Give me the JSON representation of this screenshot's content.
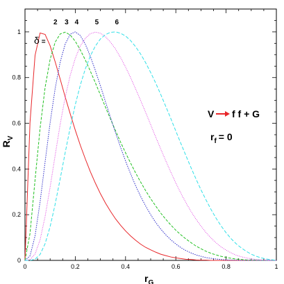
{
  "chart_data": {
    "type": "line",
    "xlabel": "r",
    "xlabel_sub": "G",
    "ylabel": "R",
    "ylabel_sub": "V",
    "xlim": [
      0,
      1
    ],
    "ylim": [
      0,
      1.1
    ],
    "xticks": [
      0,
      0.2,
      0.4,
      0.6,
      0.8,
      1
    ],
    "xtick_labels": [
      "0",
      "0.2",
      "0.4",
      "0.6",
      "0.8",
      "1"
    ],
    "yticks": [
      0,
      0.2,
      0.4,
      0.6,
      0.8,
      1
    ],
    "ytick_labels": [
      "0",
      "0.2",
      "0.4",
      "0.6",
      "0.8",
      "1"
    ],
    "grid": false,
    "delta_symbol": "δ",
    "delta_eq": "=",
    "x": [
      0,
      0.02,
      0.04,
      0.06,
      0.08,
      0.1,
      0.12,
      0.14,
      0.16,
      0.18,
      0.2,
      0.22,
      0.24,
      0.26,
      0.28,
      0.3,
      0.32,
      0.34,
      0.36,
      0.38,
      0.4,
      0.42,
      0.44,
      0.46,
      0.48,
      0.5,
      0.52,
      0.54,
      0.56,
      0.58,
      0.6,
      0.62,
      0.64,
      0.66,
      0.68,
      0.7,
      0.72,
      0.74,
      0.76,
      0.78,
      0.8,
      0.82,
      0.84,
      0.86,
      0.88,
      0.9,
      0.92,
      0.94,
      0.96,
      0.98,
      1
    ],
    "series": [
      {
        "name": "2",
        "color": "#e8262a",
        "dash": "",
        "values": [
          0,
          0.605,
          0.897,
          0.995,
          0.989,
          0.939,
          0.869,
          0.793,
          0.715,
          0.641,
          0.57,
          0.504,
          0.444,
          0.388,
          0.338,
          0.292,
          0.251,
          0.215,
          0.182,
          0.154,
          0.129,
          0.107,
          0.088,
          0.071,
          0.057,
          0.046,
          0.036,
          0.027,
          0.021,
          0.015,
          0.011,
          0.008,
          0.005,
          0.004,
          0.002,
          0.001,
          0.001,
          0,
          0,
          0,
          0,
          0,
          0,
          0,
          0,
          0,
          0,
          0,
          0,
          0,
          0
        ]
      },
      {
        "name": "3",
        "color": "#22c022",
        "dash": "4,2",
        "values": [
          0,
          0.118,
          0.352,
          0.578,
          0.757,
          0.88,
          0.955,
          0.991,
          0.999,
          0.986,
          0.959,
          0.921,
          0.877,
          0.828,
          0.777,
          0.724,
          0.671,
          0.619,
          0.568,
          0.518,
          0.471,
          0.426,
          0.383,
          0.343,
          0.305,
          0.27,
          0.238,
          0.207,
          0.18,
          0.155,
          0.132,
          0.112,
          0.094,
          0.078,
          0.063,
          0.051,
          0.04,
          0.031,
          0.024,
          0.018,
          0.013,
          0.009,
          0.006,
          0.004,
          0.002,
          0.001,
          0.001,
          0,
          0,
          0,
          0
        ]
      },
      {
        "name": "4",
        "color": "#2c2cc8",
        "dash": "1.5,1.5",
        "values": [
          0,
          0.02,
          0.107,
          0.256,
          0.431,
          0.603,
          0.752,
          0.868,
          0.947,
          0.99,
          1,
          0.984,
          0.946,
          0.893,
          0.831,
          0.764,
          0.695,
          0.626,
          0.559,
          0.495,
          0.435,
          0.379,
          0.327,
          0.28,
          0.238,
          0.2,
          0.166,
          0.137,
          0.112,
          0.09,
          0.072,
          0.056,
          0.043,
          0.033,
          0.024,
          0.018,
          0.012,
          0.009,
          0.006,
          0.004,
          0.002,
          0.001,
          0.001,
          0,
          0,
          0,
          0,
          0,
          0,
          0,
          0
        ]
      },
      {
        "name": "5",
        "color": "#e040e0",
        "dash": "1,1.5",
        "values": [
          0,
          0.003,
          0.028,
          0.09,
          0.192,
          0.321,
          0.46,
          0.596,
          0.715,
          0.81,
          0.884,
          0.938,
          0.972,
          0.992,
          0.999,
          0.994,
          0.979,
          0.955,
          0.925,
          0.888,
          0.846,
          0.8,
          0.751,
          0.7,
          0.647,
          0.594,
          0.54,
          0.487,
          0.436,
          0.386,
          0.339,
          0.294,
          0.253,
          0.215,
          0.181,
          0.15,
          0.122,
          0.098,
          0.077,
          0.059,
          0.045,
          0.033,
          0.023,
          0.016,
          0.011,
          0.007,
          0.004,
          0.002,
          0.001,
          0,
          0
        ]
      },
      {
        "name": "6",
        "color": "#30e0e8",
        "dash": "5,2.5",
        "values": [
          0,
          0,
          0.005,
          0.026,
          0.073,
          0.148,
          0.246,
          0.357,
          0.472,
          0.582,
          0.681,
          0.767,
          0.838,
          0.895,
          0.938,
          0.969,
          0.988,
          0.998,
          1,
          0.994,
          0.982,
          0.962,
          0.935,
          0.903,
          0.865,
          0.822,
          0.776,
          0.726,
          0.674,
          0.621,
          0.566,
          0.512,
          0.459,
          0.407,
          0.357,
          0.309,
          0.265,
          0.223,
          0.185,
          0.151,
          0.121,
          0.095,
          0.073,
          0.055,
          0.04,
          0.027,
          0.018,
          0.011,
          0.006,
          0.003,
          0
        ]
      }
    ],
    "annotations": {
      "process_left": "V",
      "process_right": "f f + G",
      "arrow_color": "#e8262a",
      "rf_main": "r",
      "rf_sub": "f",
      "rf_value": "= 0"
    }
  }
}
